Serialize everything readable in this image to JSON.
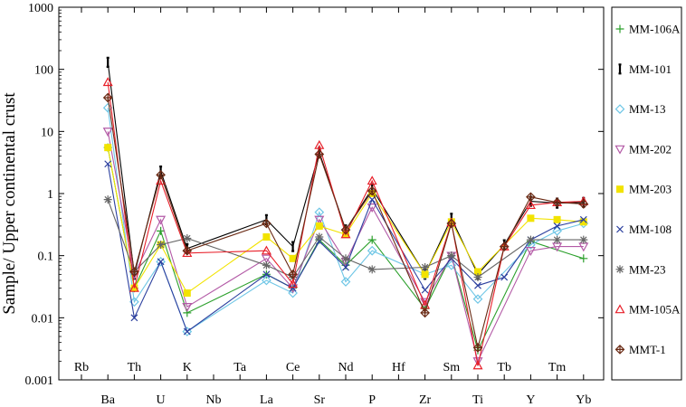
{
  "chart_data": {
    "type": "line",
    "ylabel": "Sample/ Upper continental crust",
    "yscale": "log",
    "ylim": [
      0.001,
      1000
    ],
    "yticks": [
      "0.001",
      "0.01",
      "0.1",
      "1",
      "10",
      "100",
      "1000"
    ],
    "categories": [
      "Rb",
      "Ba",
      "Th",
      "U",
      "K",
      "Nb",
      "Ta",
      "La",
      "Ce",
      "Sr",
      "Nd",
      "P",
      "Hf",
      "Zr",
      "Sm",
      "Ti",
      "Tb",
      "Y",
      "Tm",
      "Yb"
    ],
    "grid": false,
    "legend_position": "right",
    "series": [
      {
        "name": "MM-106A",
        "color": "#2ca02c",
        "marker": "plus",
        "values": [
          null,
          5.5,
          0.03,
          0.25,
          0.012,
          null,
          null,
          0.05,
          0.03,
          0.18,
          0.07,
          0.18,
          null,
          0.014,
          0.1,
          0.003,
          null,
          0.17,
          null,
          0.09
        ]
      },
      {
        "name": "MM-101",
        "color": "#000000",
        "marker": "bar",
        "values": [
          null,
          130,
          0.05,
          2.3,
          0.13,
          null,
          null,
          0.38,
          0.14,
          4.6,
          0.26,
          1.2,
          null,
          0.05,
          0.4,
          0.05,
          0.15,
          0.75,
          0.7,
          0.72
        ]
      },
      {
        "name": "MM-13",
        "color": "#6ec6e6",
        "marker": "diamond",
        "values": [
          null,
          24,
          0.018,
          0.08,
          0.006,
          null,
          null,
          0.04,
          0.025,
          0.5,
          0.038,
          0.12,
          null,
          0.05,
          0.07,
          0.02,
          null,
          0.15,
          0.25,
          0.33
        ]
      },
      {
        "name": "MM-202",
        "color": "#b35aa6",
        "marker": "triangle-down",
        "values": [
          null,
          10,
          0.05,
          0.38,
          0.015,
          null,
          null,
          0.09,
          0.03,
          0.38,
          0.08,
          0.6,
          null,
          0.018,
          0.1,
          0.002,
          null,
          0.12,
          0.14,
          0.14
        ]
      },
      {
        "name": "MM-203",
        "color": "#f2e300",
        "marker": "square",
        "values": [
          null,
          5.5,
          0.03,
          0.15,
          0.025,
          null,
          null,
          0.2,
          0.09,
          0.3,
          0.22,
          1.0,
          null,
          0.05,
          0.35,
          0.055,
          null,
          0.4,
          0.38,
          0.35
        ]
      },
      {
        "name": "MM-108",
        "color": "#2b3f9e",
        "marker": "x",
        "values": [
          null,
          3,
          0.01,
          0.08,
          0.006,
          null,
          null,
          0.05,
          0.03,
          0.17,
          0.065,
          0.8,
          null,
          0.028,
          0.09,
          0.033,
          0.045,
          0.18,
          0.3,
          0.38
        ]
      },
      {
        "name": "MM-23",
        "color": "#666666",
        "marker": "star",
        "values": [
          null,
          0.8,
          0.055,
          0.15,
          0.19,
          null,
          null,
          0.07,
          0.045,
          0.2,
          0.09,
          0.06,
          null,
          0.065,
          0.1,
          0.045,
          null,
          0.18,
          0.18,
          0.18
        ]
      },
      {
        "name": "MM-105A",
        "color": "#e8202a",
        "marker": "triangle-up",
        "values": [
          null,
          62,
          0.03,
          1.6,
          0.11,
          null,
          null,
          0.12,
          0.035,
          6,
          0.22,
          1.6,
          null,
          0.016,
          0.34,
          0.0017,
          0.14,
          0.65,
          0.72,
          0.75
        ]
      },
      {
        "name": "MMT-1",
        "color": "#6a2a14",
        "marker": "diamond-plus",
        "values": [
          null,
          35,
          0.055,
          2.0,
          0.12,
          null,
          null,
          0.33,
          0.05,
          4.3,
          0.26,
          1.1,
          null,
          0.012,
          0.33,
          0.0033,
          0.14,
          0.88,
          0.72,
          0.68
        ]
      }
    ]
  }
}
